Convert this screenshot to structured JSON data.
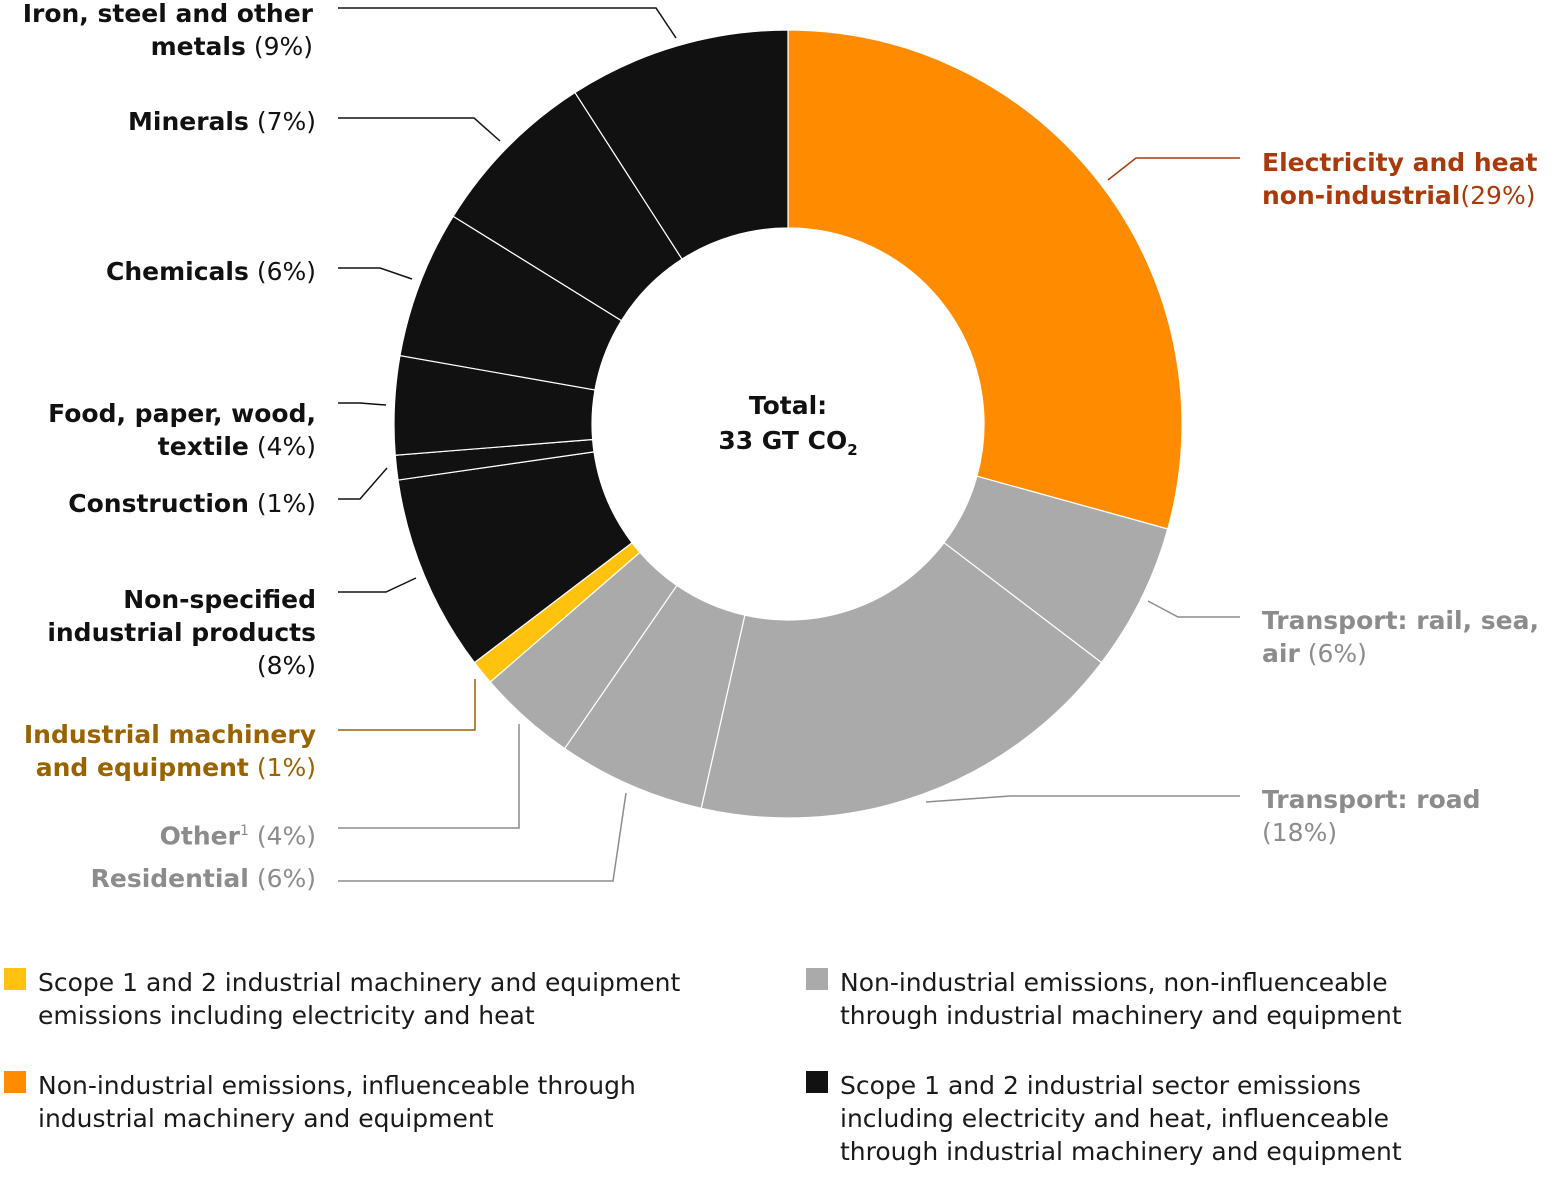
{
  "chart_data": {
    "type": "pie",
    "variant": "donut",
    "center_label": {
      "line1": "Total:",
      "line2": "33 GT CO",
      "subscript": "2"
    },
    "slices": [
      {
        "name": "Electricity and heat non-industrial",
        "percent_label": "(29%)",
        "value": 29,
        "group": "orange"
      },
      {
        "name": "Transport: rail, sea, air",
        "percent_label": "(6%)",
        "value": 6,
        "group": "grey"
      },
      {
        "name": "Transport: road",
        "percent_label": "(18%)",
        "value": 18,
        "group": "grey"
      },
      {
        "name": "Residential",
        "percent_label": "(6%)",
        "value": 6,
        "group": "grey"
      },
      {
        "name": "Other",
        "superscript": "1",
        "percent_label": "(4%)",
        "value": 4,
        "group": "grey"
      },
      {
        "name": "Industrial machinery and equipment",
        "percent_label": "(1%)",
        "value": 1,
        "group": "yellow"
      },
      {
        "name": "Non-specified industrial products",
        "percent_label": "(8%)",
        "value": 8,
        "group": "black"
      },
      {
        "name": "Construction",
        "percent_label": "(1%)",
        "value": 1,
        "group": "black"
      },
      {
        "name": "Food, paper, wood, textile",
        "percent_label": "(4%)",
        "value": 4,
        "group": "black"
      },
      {
        "name": "Chemicals",
        "percent_label": "(6%)",
        "value": 6,
        "group": "black"
      },
      {
        "name": "Minerals",
        "percent_label": "(7%)",
        "value": 7,
        "group": "black"
      },
      {
        "name": "Iron, steel and other metals",
        "percent_label": "(9%)",
        "value": 9,
        "group": "black"
      }
    ],
    "colors": {
      "orange": "#ff8c00",
      "grey": "#aaaaaa",
      "yellow": "#ffc20e",
      "black": "#111111"
    },
    "label_text_colors": {
      "orange": "#a83a0b",
      "grey": "#8c8c8c",
      "yellow": "#996300",
      "black": "#111111"
    },
    "legend": [
      {
        "group": "yellow",
        "text": "Scope 1 and 2 industrial machinery and equipment emissions including electricity and heat"
      },
      {
        "group": "grey",
        "text": "Non-industrial emissions, non-influenceable through industrial machinery and equipment"
      },
      {
        "group": "orange",
        "text": "Non-industrial emissions, influenceable through industrial machinery and equipment"
      },
      {
        "group": "black",
        "text": "Scope 1 and 2 industrial sector emissions including electricity and heat, influenceable through industrial machinery and equipment"
      }
    ]
  }
}
